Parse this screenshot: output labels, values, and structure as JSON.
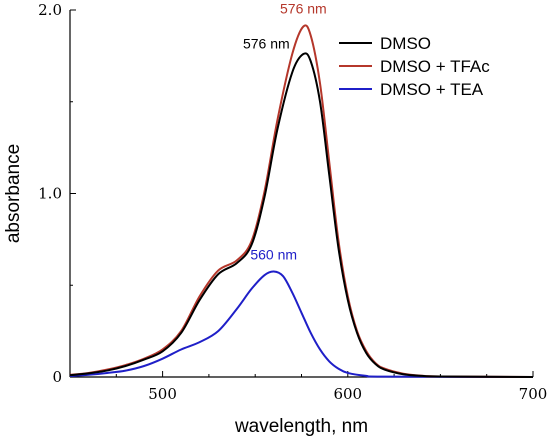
{
  "chart_data": {
    "type": "line",
    "xlabel": "wavelength, nm",
    "ylabel": "absorbance",
    "xlim": [
      450,
      700
    ],
    "ylim": [
      0,
      2.0
    ],
    "x_ticks": [
      500,
      600,
      700
    ],
    "x_tick_labels": [
      "500",
      "600",
      "700"
    ],
    "y_ticks": [
      0,
      1.0,
      2.0
    ],
    "y_tick_labels": [
      "0",
      "1.0",
      "2.0"
    ],
    "grid": false,
    "legend_position": "top-right",
    "series": [
      {
        "name": "DMSO",
        "color": "#000000",
        "points": [
          [
            450,
            0.01
          ],
          [
            460,
            0.02
          ],
          [
            470,
            0.035
          ],
          [
            480,
            0.06
          ],
          [
            490,
            0.095
          ],
          [
            500,
            0.14
          ],
          [
            510,
            0.24
          ],
          [
            520,
            0.42
          ],
          [
            530,
            0.56
          ],
          [
            540,
            0.62
          ],
          [
            548,
            0.72
          ],
          [
            555,
            0.98
          ],
          [
            562,
            1.35
          ],
          [
            570,
            1.66
          ],
          [
            576,
            1.76
          ],
          [
            580,
            1.72
          ],
          [
            585,
            1.5
          ],
          [
            590,
            1.1
          ],
          [
            595,
            0.7
          ],
          [
            600,
            0.42
          ],
          [
            605,
            0.24
          ],
          [
            610,
            0.13
          ],
          [
            615,
            0.07
          ],
          [
            620,
            0.04
          ],
          [
            630,
            0.015
          ],
          [
            640,
            0.006
          ],
          [
            650,
            0.003
          ],
          [
            700,
            0.0
          ]
        ]
      },
      {
        "name": "DMSO + TFAc",
        "color": "#b5372b",
        "points": [
          [
            450,
            0.012
          ],
          [
            460,
            0.022
          ],
          [
            470,
            0.04
          ],
          [
            480,
            0.065
          ],
          [
            490,
            0.1
          ],
          [
            500,
            0.15
          ],
          [
            510,
            0.25
          ],
          [
            520,
            0.44
          ],
          [
            530,
            0.58
          ],
          [
            540,
            0.635
          ],
          [
            548,
            0.74
          ],
          [
            555,
            1.01
          ],
          [
            562,
            1.4
          ],
          [
            570,
            1.76
          ],
          [
            576,
            1.91
          ],
          [
            580,
            1.86
          ],
          [
            585,
            1.6
          ],
          [
            590,
            1.17
          ],
          [
            595,
            0.74
          ],
          [
            600,
            0.44
          ],
          [
            605,
            0.25
          ],
          [
            610,
            0.14
          ],
          [
            615,
            0.075
          ],
          [
            620,
            0.045
          ],
          [
            630,
            0.018
          ],
          [
            640,
            0.007
          ],
          [
            650,
            0.003
          ],
          [
            700,
            0.0
          ]
        ]
      },
      {
        "name": "DMSO + TEA",
        "color": "#1f1fc8",
        "points": [
          [
            450,
            0.005
          ],
          [
            460,
            0.012
          ],
          [
            470,
            0.022
          ],
          [
            480,
            0.035
          ],
          [
            490,
            0.06
          ],
          [
            500,
            0.1
          ],
          [
            510,
            0.15
          ],
          [
            520,
            0.19
          ],
          [
            530,
            0.25
          ],
          [
            540,
            0.37
          ],
          [
            548,
            0.48
          ],
          [
            555,
            0.555
          ],
          [
            560,
            0.575
          ],
          [
            565,
            0.55
          ],
          [
            570,
            0.46
          ],
          [
            575,
            0.35
          ],
          [
            580,
            0.24
          ],
          [
            585,
            0.15
          ],
          [
            590,
            0.085
          ],
          [
            595,
            0.045
          ],
          [
            600,
            0.022
          ],
          [
            610,
            0.006
          ],
          [
            620,
            0.002
          ],
          [
            700,
            0.0
          ]
        ]
      }
    ],
    "annotations": [
      {
        "text": "576 nm",
        "x": 576,
        "y": 1.98,
        "color": "#b5372b"
      },
      {
        "text": "576 nm",
        "x": 556,
        "y": 1.79,
        "color": "#000000"
      },
      {
        "text": "560 nm",
        "x": 560,
        "y": 0.64,
        "color": "#1f1fc8"
      }
    ]
  }
}
